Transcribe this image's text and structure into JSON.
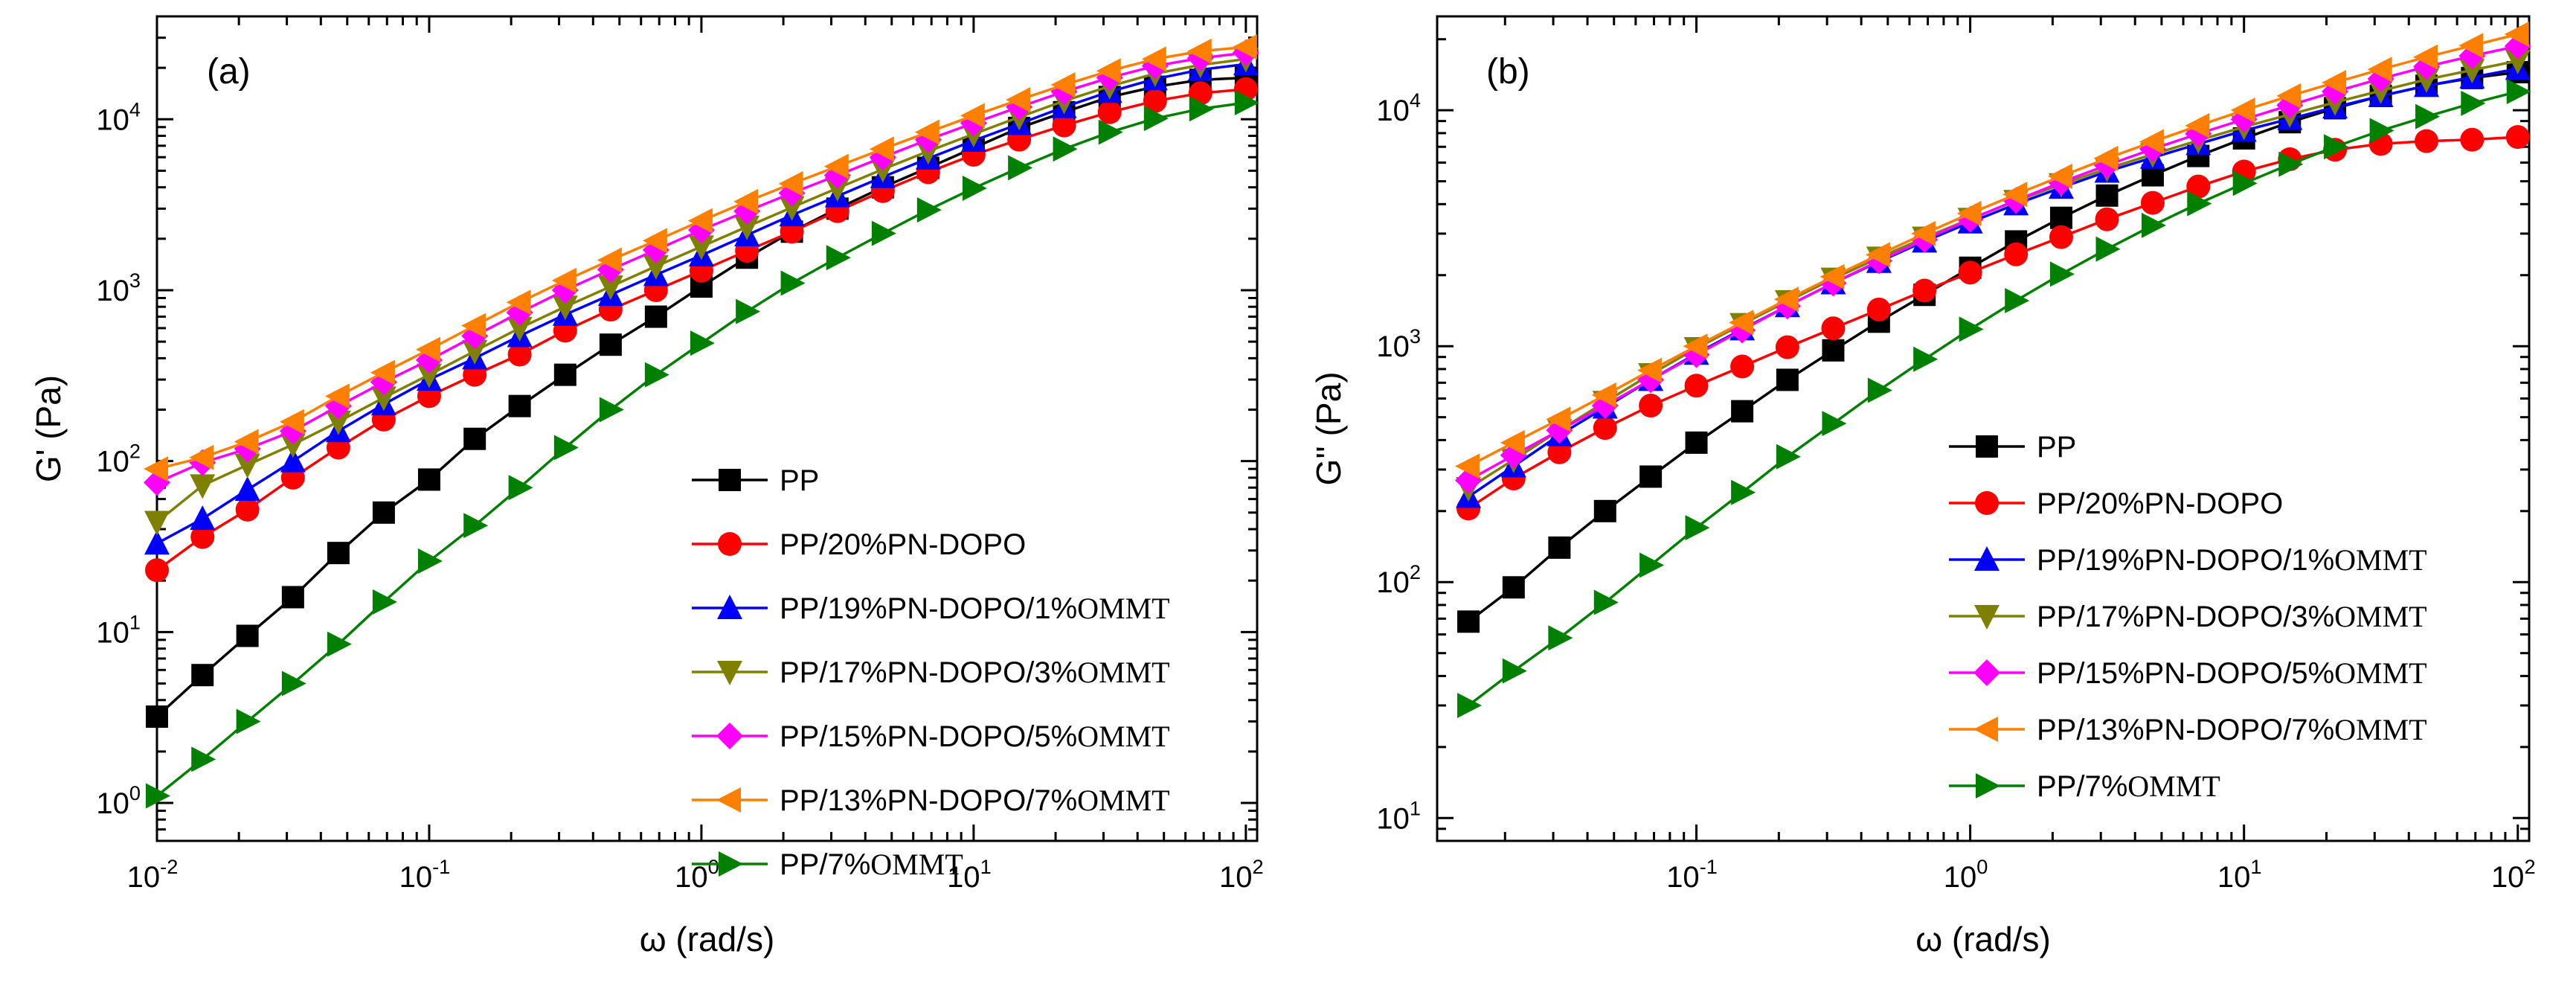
{
  "chart_data": [
    {
      "type": "line",
      "panel_label": "(a)",
      "xlabel": "ω (rad/s)",
      "ylabel": "G' (Pa)",
      "xscale": "log",
      "yscale": "log",
      "xlim": [
        0.01,
        110
      ],
      "ylim": [
        0.6,
        40000
      ],
      "x_ticks": [
        0.01,
        0.1,
        1,
        10,
        100
      ],
      "x_tick_labels": [
        {
          "base": "10",
          "exp": "-2"
        },
        {
          "base": "10",
          "exp": "-1"
        },
        {
          "base": "10",
          "exp": "0"
        },
        {
          "base": "10",
          "exp": "1"
        },
        {
          "base": "10",
          "exp": "2"
        }
      ],
      "y_ticks": [
        1,
        10,
        100,
        1000,
        10000
      ],
      "y_tick_labels": [
        {
          "base": "10",
          "exp": "0"
        },
        {
          "base": "10",
          "exp": "1"
        },
        {
          "base": "10",
          "exp": "2"
        },
        {
          "base": "10",
          "exp": "3"
        },
        {
          "base": "10",
          "exp": "4"
        }
      ],
      "grid": false,
      "legend_position": "lower-right",
      "series": [
        {
          "name": "PP",
          "color": "#000000",
          "marker": "square",
          "x": [
            0.01,
            0.0147,
            0.0215,
            0.0316,
            0.0464,
            0.0681,
            0.1,
            0.147,
            0.215,
            0.316,
            0.464,
            0.681,
            1,
            1.47,
            2.15,
            3.16,
            4.64,
            6.81,
            10,
            14.7,
            21.5,
            31.6,
            46.4,
            68.1,
            100
          ],
          "values": [
            3.2,
            5.6,
            9.5,
            16,
            29,
            50,
            78,
            135,
            210,
            320,
            480,
            700,
            1050,
            1550,
            2200,
            3000,
            4000,
            5200,
            6800,
            8900,
            11000,
            13500,
            15500,
            17000,
            17500
          ]
        },
        {
          "name": "PP/20%PN-DOPO",
          "color": "#ff0000",
          "marker": "circle",
          "x": [
            0.01,
            0.0147,
            0.0215,
            0.0316,
            0.0464,
            0.0681,
            0.1,
            0.147,
            0.215,
            0.316,
            0.464,
            0.681,
            1,
            1.47,
            2.15,
            3.16,
            4.64,
            6.81,
            10,
            14.7,
            21.5,
            31.6,
            46.4,
            68.1,
            100
          ],
          "values": [
            23,
            36,
            52,
            80,
            120,
            175,
            240,
            320,
            420,
            580,
            770,
            1000,
            1300,
            1700,
            2200,
            2900,
            3800,
            4900,
            6200,
            7600,
            9200,
            11000,
            12800,
            14200,
            15000
          ]
        },
        {
          "name": "PP/19%PN-DOPO/1%OMMT",
          "color": "#0000ff",
          "marker": "triangle-up",
          "x": [
            0.01,
            0.0147,
            0.0215,
            0.0316,
            0.0464,
            0.0681,
            0.1,
            0.147,
            0.215,
            0.316,
            0.464,
            0.681,
            1,
            1.47,
            2.15,
            3.16,
            4.64,
            6.81,
            10,
            14.7,
            21.5,
            31.6,
            46.4,
            68.1,
            100
          ],
          "values": [
            33,
            46,
            68,
            100,
            150,
            215,
            300,
            400,
            540,
            720,
            940,
            1230,
            1600,
            2100,
            2750,
            3550,
            4600,
            5900,
            7500,
            9400,
            11800,
            14500,
            17200,
            19500,
            21000
          ]
        },
        {
          "name": "PP/17%PN-DOPO/3%OMMT",
          "color": "#808000",
          "marker": "triangle-down",
          "x": [
            0.01,
            0.0147,
            0.0215,
            0.0316,
            0.0464,
            0.0681,
            0.1,
            0.147,
            0.215,
            0.316,
            0.464,
            0.681,
            1,
            1.47,
            2.15,
            3.16,
            4.64,
            6.81,
            10,
            14.7,
            21.5,
            31.6,
            46.4,
            68.1,
            100
          ],
          "values": [
            44,
            72,
            95,
            125,
            170,
            235,
            320,
            440,
            600,
            800,
            1050,
            1380,
            1800,
            2350,
            3050,
            3950,
            5100,
            6500,
            8200,
            10300,
            12800,
            15600,
            18500,
            20800,
            22500
          ]
        },
        {
          "name": "PP/15%PN-DOPO/5%OMMT",
          "color": "#ff00ff",
          "marker": "diamond",
          "x": [
            0.01,
            0.0147,
            0.0215,
            0.0316,
            0.0464,
            0.0681,
            0.1,
            0.147,
            0.215,
            0.316,
            0.464,
            0.681,
            1,
            1.47,
            2.15,
            3.16,
            4.64,
            6.81,
            10,
            14.7,
            21.5,
            31.6,
            46.4,
            68.1,
            100
          ],
          "values": [
            75,
            98,
            118,
            150,
            210,
            290,
            390,
            540,
            740,
            1000,
            1320,
            1720,
            2250,
            2900,
            3700,
            4700,
            6000,
            7600,
            9500,
            11800,
            14500,
            17500,
            20500,
            22800,
            24500
          ]
        },
        {
          "name": "PP/13%PN-DOPO/7%OMMT",
          "color": "#ff8000",
          "marker": "triangle-left",
          "x": [
            0.01,
            0.0147,
            0.0215,
            0.0316,
            0.0464,
            0.0681,
            0.1,
            0.147,
            0.215,
            0.316,
            0.464,
            0.681,
            1,
            1.47,
            2.15,
            3.16,
            4.64,
            6.81,
            10,
            14.7,
            21.5,
            31.6,
            46.4,
            68.1,
            100
          ],
          "values": [
            90,
            105,
            130,
            170,
            240,
            330,
            450,
            620,
            850,
            1140,
            1500,
            1950,
            2550,
            3300,
            4200,
            5300,
            6700,
            8400,
            10500,
            13000,
            15900,
            19200,
            22500,
            25000,
            26500
          ]
        },
        {
          "name": "PP/7%OMMT",
          "color": "#008000",
          "marker": "triangle-right",
          "x": [
            0.01,
            0.0147,
            0.0215,
            0.0316,
            0.0464,
            0.0681,
            0.1,
            0.147,
            0.215,
            0.316,
            0.464,
            0.681,
            1,
            1.47,
            2.15,
            3.16,
            4.64,
            6.81,
            10,
            14.7,
            21.5,
            31.6,
            46.4,
            68.1,
            100
          ],
          "values": [
            1.1,
            1.8,
            3.0,
            5.0,
            8.5,
            15,
            26,
            42,
            70,
            120,
            200,
            320,
            490,
            750,
            1100,
            1550,
            2150,
            2950,
            3950,
            5200,
            6700,
            8400,
            10100,
            11500,
            12500
          ]
        }
      ]
    },
    {
      "type": "line",
      "panel_label": "(b)",
      "xlabel": "ω (rad/s)",
      "ylabel": "G'' (Pa)",
      "xscale": "log",
      "yscale": "log",
      "xlim": [
        0.0113,
        110
      ],
      "ylim": [
        8,
        25000
      ],
      "x_ticks": [
        0.1,
        1,
        10,
        100
      ],
      "x_tick_labels": [
        {
          "base": "10",
          "exp": "-1"
        },
        {
          "base": "10",
          "exp": "0"
        },
        {
          "base": "10",
          "exp": "1"
        },
        {
          "base": "10",
          "exp": "2"
        }
      ],
      "y_ticks": [
        10,
        100,
        1000,
        10000
      ],
      "y_tick_labels": [
        {
          "base": "10",
          "exp": "1"
        },
        {
          "base": "10",
          "exp": "2"
        },
        {
          "base": "10",
          "exp": "3"
        },
        {
          "base": "10",
          "exp": "4"
        }
      ],
      "grid": false,
      "legend_position": "lower-right",
      "series": [
        {
          "name": "PP",
          "color": "#000000",
          "marker": "square",
          "x": [
            0.0147,
            0.0215,
            0.0316,
            0.0464,
            0.0681,
            0.1,
            0.147,
            0.215,
            0.316,
            0.464,
            0.681,
            1,
            1.47,
            2.15,
            3.16,
            4.64,
            6.81,
            10,
            14.7,
            21.5,
            31.6,
            46.4,
            68.1,
            100
          ],
          "values": [
            68,
            95,
            140,
            200,
            280,
            390,
            530,
            720,
            960,
            1270,
            1650,
            2150,
            2780,
            3500,
            4350,
            5300,
            6400,
            7600,
            8900,
            10200,
            11500,
            12700,
            13700,
            14500
          ]
        },
        {
          "name": "PP/20%PN-DOPO",
          "color": "#ff0000",
          "marker": "circle",
          "x": [
            0.0147,
            0.0215,
            0.0316,
            0.0464,
            0.0681,
            0.1,
            0.147,
            0.215,
            0.316,
            0.464,
            0.681,
            1,
            1.47,
            2.15,
            3.16,
            4.64,
            6.81,
            10,
            14.7,
            21.5,
            31.6,
            46.4,
            68.1,
            100
          ],
          "values": [
            205,
            275,
            355,
            450,
            560,
            680,
            820,
            990,
            1190,
            1430,
            1720,
            2050,
            2450,
            2900,
            3450,
            4050,
            4750,
            5500,
            6200,
            6800,
            7200,
            7400,
            7500,
            7700
          ]
        },
        {
          "name": "PP/19%PN-DOPO/1%OMMT",
          "color": "#0000ff",
          "marker": "triangle-up",
          "x": [
            0.0147,
            0.0215,
            0.0316,
            0.0464,
            0.0681,
            0.1,
            0.147,
            0.215,
            0.316,
            0.464,
            0.681,
            1,
            1.47,
            2.15,
            3.16,
            4.64,
            6.81,
            10,
            14.7,
            21.5,
            31.6,
            46.4,
            68.1,
            100
          ],
          "values": [
            230,
            310,
            420,
            550,
            720,
            930,
            1180,
            1480,
            1850,
            2280,
            2780,
            3350,
            4000,
            4700,
            5500,
            6300,
            7200,
            8200,
            9200,
            10300,
            11500,
            12700,
            13800,
            15000
          ]
        },
        {
          "name": "PP/17%PN-DOPO/3%OMMT",
          "color": "#808000",
          "marker": "triangle-down",
          "x": [
            0.0147,
            0.0215,
            0.0316,
            0.0464,
            0.0681,
            0.1,
            0.147,
            0.215,
            0.316,
            0.464,
            0.681,
            1,
            1.47,
            2.15,
            3.16,
            4.64,
            6.81,
            10,
            14.7,
            21.5,
            31.6,
            46.4,
            68.1,
            100
          ],
          "values": [
            250,
            330,
            440,
            580,
            760,
            980,
            1240,
            1550,
            1930,
            2370,
            2880,
            3460,
            4120,
            4850,
            5650,
            6500,
            7450,
            8500,
            9600,
            10800,
            12100,
            13500,
            14800,
            16200
          ]
        },
        {
          "name": "PP/15%PN-DOPO/5%OMMT",
          "color": "#ff00ff",
          "marker": "diamond",
          "x": [
            0.0147,
            0.0215,
            0.0316,
            0.0464,
            0.0681,
            0.1,
            0.147,
            0.215,
            0.316,
            0.464,
            0.681,
            1,
            1.47,
            2.15,
            3.16,
            4.64,
            6.81,
            10,
            14.7,
            21.5,
            31.6,
            46.4,
            68.1,
            100
          ],
          "values": [
            270,
            345,
            440,
            560,
            720,
            920,
            1170,
            1480,
            1850,
            2300,
            2830,
            3450,
            4150,
            4950,
            5850,
            6850,
            7950,
            9150,
            10500,
            12000,
            13600,
            15300,
            17000,
            18700
          ]
        },
        {
          "name": "PP/13%PN-DOPO/7%OMMT",
          "color": "#ff8000",
          "marker": "triangle-left",
          "x": [
            0.0147,
            0.0215,
            0.0316,
            0.0464,
            0.0681,
            0.1,
            0.147,
            0.215,
            0.316,
            0.464,
            0.681,
            1,
            1.47,
            2.15,
            3.16,
            4.64,
            6.81,
            10,
            14.7,
            21.5,
            31.6,
            46.4,
            68.1,
            100
          ],
          "values": [
            310,
            390,
            490,
            620,
            790,
            1000,
            1260,
            1580,
            1970,
            2440,
            3000,
            3650,
            4400,
            5250,
            6250,
            7350,
            8600,
            10000,
            11500,
            13100,
            14900,
            16800,
            18800,
            21000
          ]
        },
        {
          "name": "PP/7%OMMT",
          "color": "#008000",
          "marker": "triangle-right",
          "x": [
            0.0147,
            0.0215,
            0.0316,
            0.0464,
            0.0681,
            0.1,
            0.147,
            0.215,
            0.316,
            0.464,
            0.681,
            1,
            1.47,
            2.15,
            3.16,
            4.64,
            6.81,
            10,
            14.7,
            21.5,
            31.6,
            46.4,
            68.1,
            100
          ],
          "values": [
            30,
            42,
            58,
            82,
            118,
            170,
            240,
            340,
            470,
            650,
            880,
            1180,
            1560,
            2020,
            2580,
            3250,
            4020,
            4900,
            5900,
            7000,
            8200,
            9400,
            10700,
            12000
          ]
        }
      ]
    }
  ]
}
